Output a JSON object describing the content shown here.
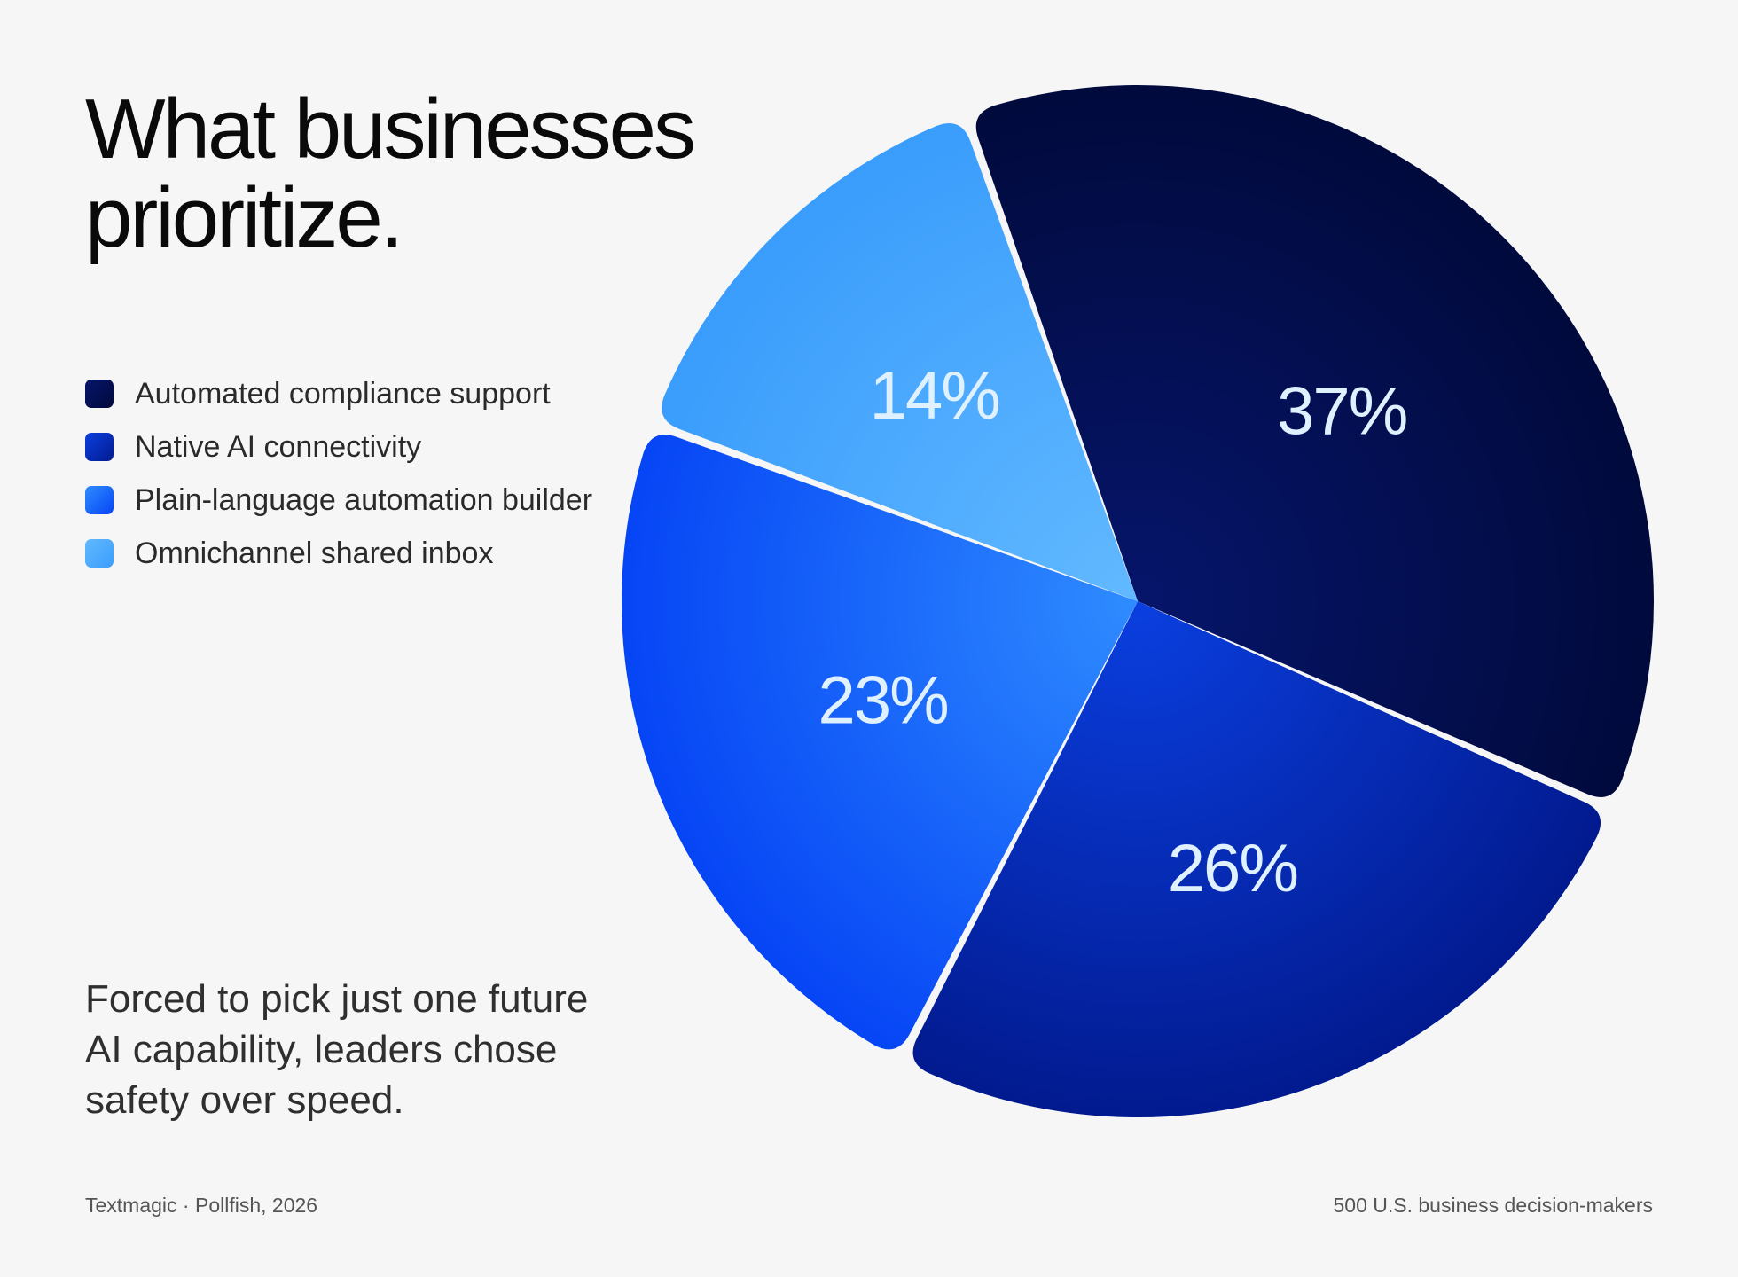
{
  "title_line1": "What businesses",
  "title_line2": "prioritize.",
  "caption_lines": [
    "Forced to pick just one future",
    "AI capability, leaders chose",
    "safety over speed."
  ],
  "footer": {
    "source": "Textmagic · Pollfish, 2026",
    "sample": "500 U.S. business decision-makers"
  },
  "chart_data": {
    "type": "pie",
    "slices": [
      {
        "label": "Automated compliance support",
        "value": 37,
        "display": "37%",
        "color": "#06156b",
        "color_dark": "#010a3c"
      },
      {
        "label": "Native AI connectivity",
        "value": 26,
        "display": "26%",
        "color": "#0a3fe0",
        "color_dark": "#021a8f"
      },
      {
        "label": "Plain-language automation builder",
        "value": 23,
        "display": "23%",
        "color": "#2f8cff",
        "color_dark": "#0645f5"
      },
      {
        "label": "Omnichannel shared inbox",
        "value": 14,
        "display": "14%",
        "color": "#62b9ff",
        "color_dark": "#3a9dfc"
      }
    ]
  }
}
